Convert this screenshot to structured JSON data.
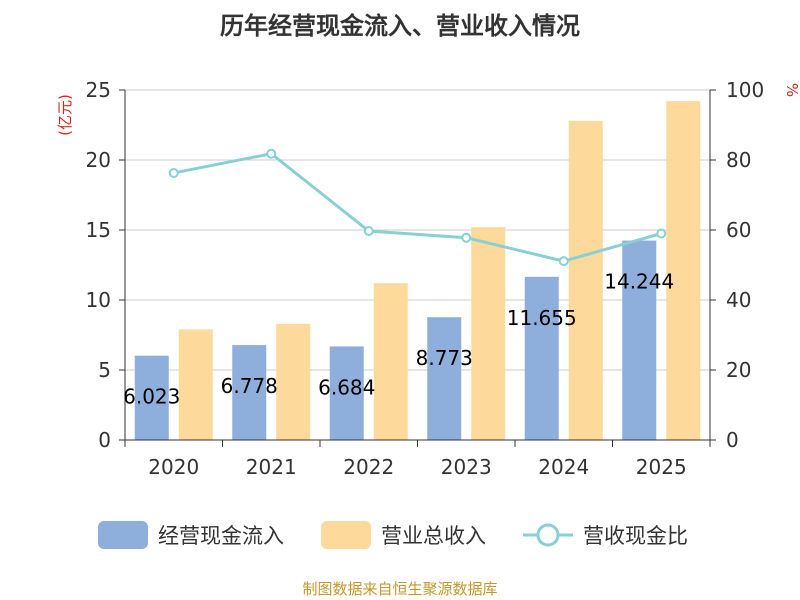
{
  "chart_data": {
    "type": "bar",
    "title": "历年经营现金流入、营业收入情况",
    "categories": [
      "2020",
      "2021",
      "2022",
      "2023",
      "2024",
      "2025"
    ],
    "y_left": {
      "unit": "(亿元)",
      "range": [
        0,
        25
      ],
      "ticks": [
        0,
        5,
        10,
        15,
        20,
        25
      ]
    },
    "y_right": {
      "unit": "%",
      "range": [
        0,
        100
      ],
      "ticks": [
        0,
        20,
        40,
        60,
        80,
        100
      ]
    },
    "grid": true,
    "legend_position": "bottom",
    "series": [
      {
        "name": "经营现金流入",
        "type": "bar",
        "axis": "left",
        "color": "#8eaedb",
        "values": [
          6.023,
          6.778,
          6.684,
          8.773,
          11.655,
          14.244
        ],
        "labels": [
          "6.023",
          "6.778",
          "6.684",
          "8.773",
          "11.655",
          "14.244"
        ]
      },
      {
        "name": "营业总收入",
        "type": "bar",
        "axis": "left",
        "color": "#fdd99b",
        "values": [
          7.9,
          8.3,
          11.2,
          15.2,
          22.8,
          24.2
        ]
      },
      {
        "name": "营收现金比",
        "type": "line",
        "axis": "right",
        "color": "#88d0d4",
        "values": [
          76.3,
          81.8,
          59.7,
          57.8,
          51.1,
          59.0
        ]
      }
    ]
  },
  "source_text": "制图数据来自恒生聚源数据库"
}
